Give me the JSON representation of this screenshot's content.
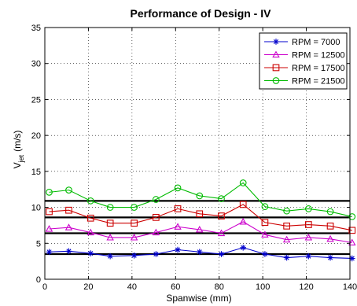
{
  "chart_data": {
    "type": "line",
    "title": "Performance of Design - IV",
    "xlabel": "Spanwise (mm)",
    "ylabel": "V",
    "ylabel_subscript": "jet",
    "ylabel_units": "(m/s)",
    "xlim": [
      0,
      140
    ],
    "ylim": [
      0,
      35
    ],
    "xticks": [
      0,
      20,
      40,
      60,
      80,
      100,
      120,
      140
    ],
    "yticks": [
      0,
      5,
      10,
      15,
      20,
      25,
      30,
      35
    ],
    "grid": true,
    "legend_position": "top-right",
    "x": [
      2,
      11,
      21,
      30,
      41,
      51,
      61,
      71,
      81,
      91,
      101,
      111,
      121,
      131,
      141
    ],
    "series": [
      {
        "name": "RPM = 7000",
        "color": "#0000cc",
        "marker": "star",
        "values": [
          3.8,
          3.9,
          3.6,
          3.2,
          3.3,
          3.5,
          4.1,
          3.8,
          3.5,
          4.4,
          3.5,
          3.0,
          3.2,
          3.0,
          2.9
        ]
      },
      {
        "name": "RPM = 12500",
        "color": "#cc00cc",
        "marker": "triangle",
        "values": [
          7.0,
          7.2,
          6.5,
          5.8,
          5.8,
          6.5,
          7.3,
          6.9,
          6.4,
          8.0,
          6.2,
          5.5,
          5.8,
          5.6,
          5.1
        ]
      },
      {
        "name": "RPM = 17500",
        "color": "#cc0000",
        "marker": "square",
        "values": [
          9.4,
          9.6,
          8.5,
          7.8,
          7.8,
          8.6,
          9.8,
          9.1,
          8.8,
          10.4,
          7.9,
          7.4,
          7.6,
          7.4,
          6.8
        ]
      },
      {
        "name": "RPM = 21500",
        "color": "#00bb00",
        "marker": "circle",
        "values": [
          12.1,
          12.4,
          10.9,
          10.0,
          10.0,
          11.1,
          12.7,
          11.6,
          11.2,
          13.4,
          10.1,
          9.5,
          9.8,
          9.4,
          8.7
        ]
      }
    ],
    "reference_lines": [
      {
        "y": 3.5,
        "color": "#000000"
      },
      {
        "y": 6.4,
        "color": "#000000"
      },
      {
        "y": 8.6,
        "color": "#000000"
      },
      {
        "y": 10.9,
        "color": "#000000"
      }
    ]
  }
}
